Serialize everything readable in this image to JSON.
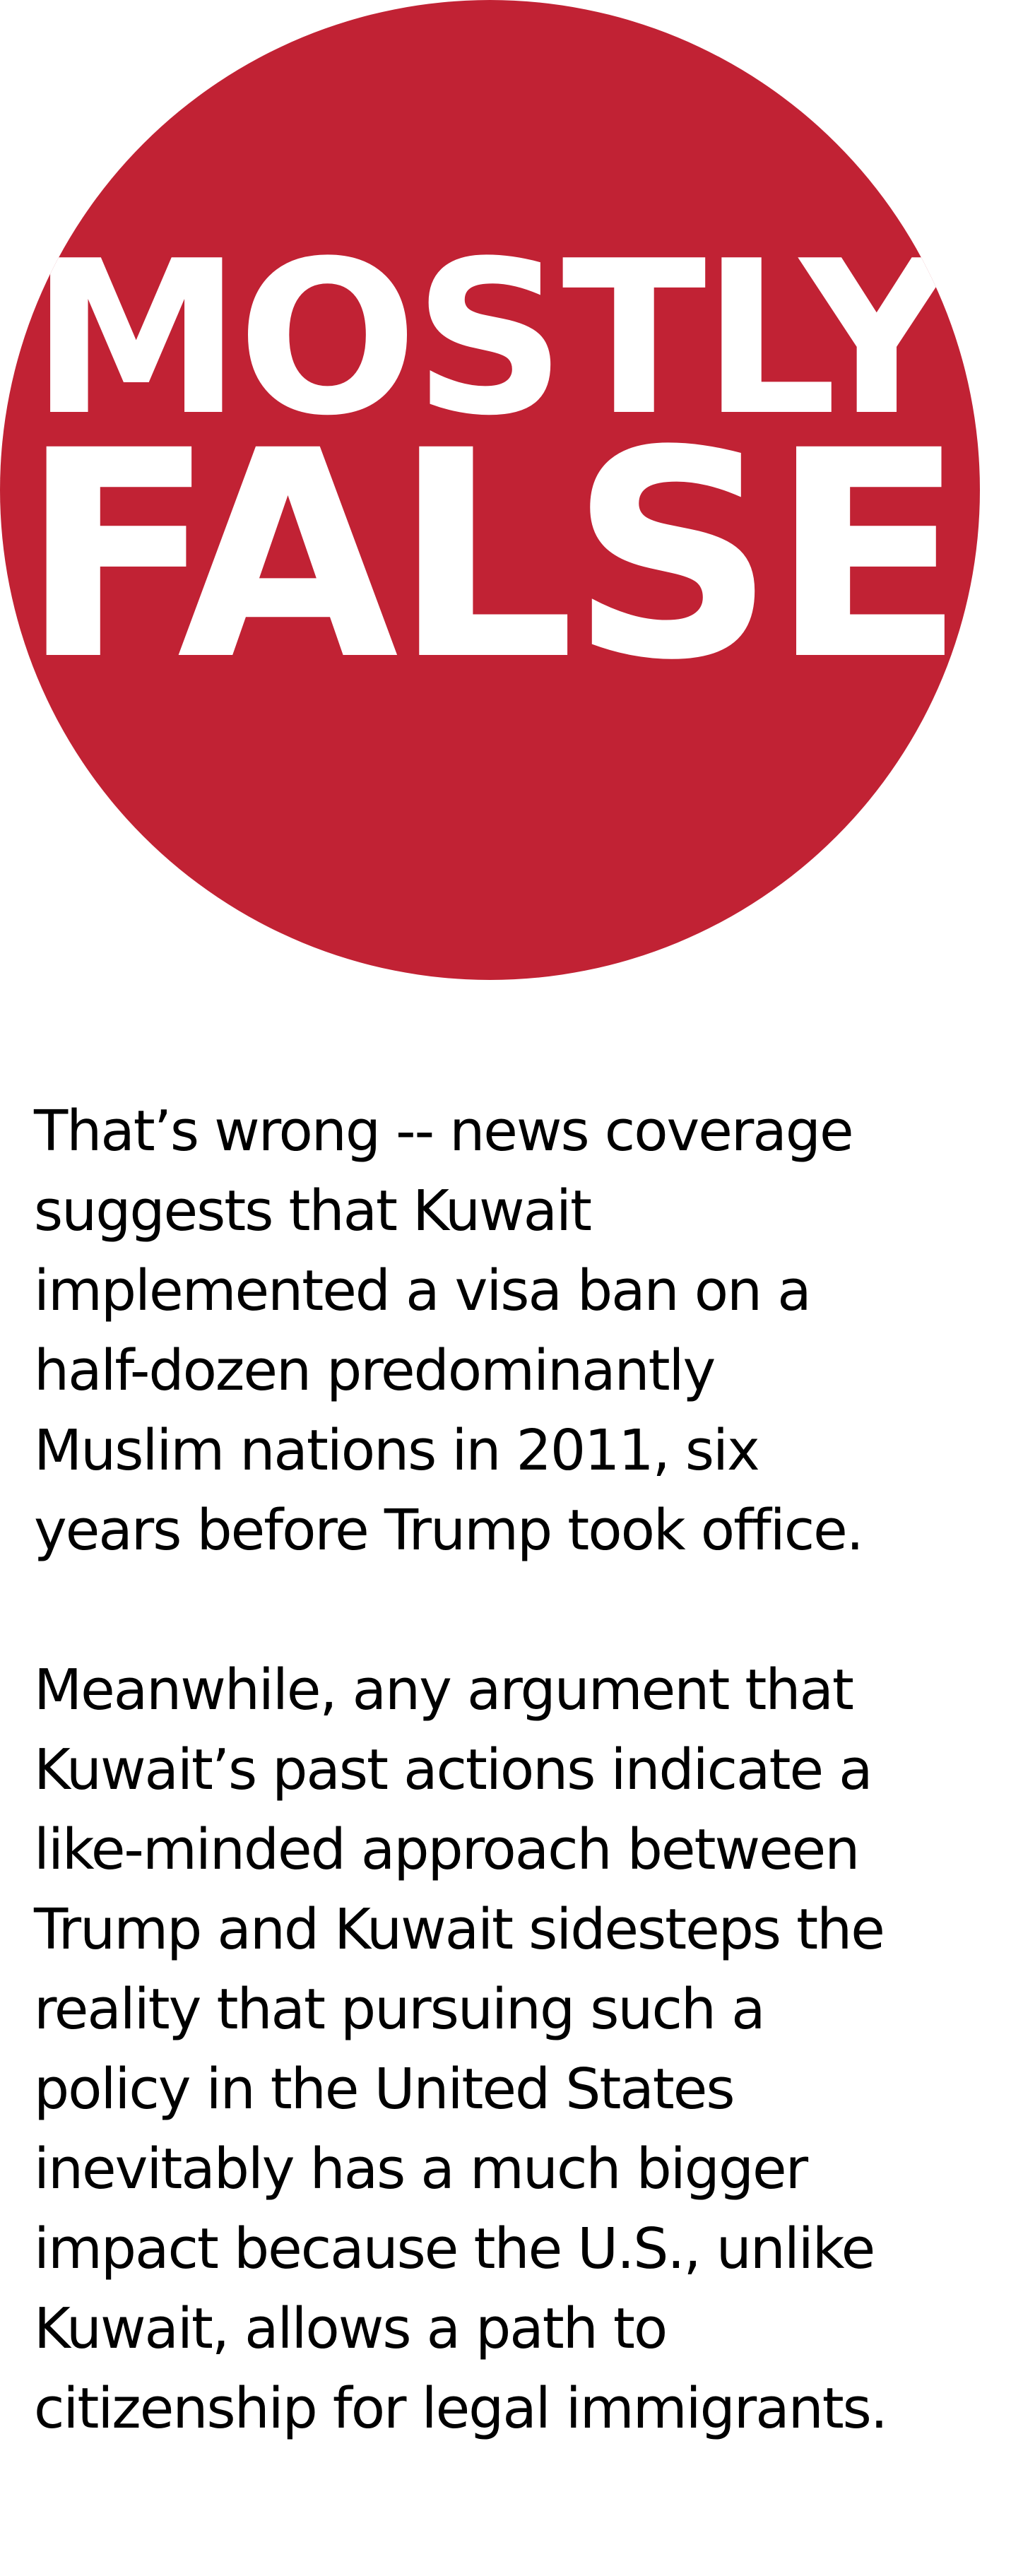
{
  "badge": {
    "color": "#c12234",
    "line1": "MOSTLY",
    "line2": "FALSE"
  },
  "paragraphs": [
    {
      "lines": [
        "That’s wrong -- news coverage",
        "suggests that Kuwait",
        "implemented a visa ban on a",
        "half-dozen predominantly",
        "Muslim nations in 2011, six",
        "years before Trump took office."
      ]
    },
    {
      "lines": [
        "Meanwhile, any argument that",
        "Kuwait’s past actions indicate a",
        "like-minded approach between",
        "Trump and Kuwait sidesteps the",
        "reality that pursuing such a",
        "policy in the United States",
        "inevitably has a much bigger",
        "impact because the U.S., unlike",
        "Kuwait, allows a path to",
        "citizenship for legal immigrants."
      ]
    }
  ]
}
